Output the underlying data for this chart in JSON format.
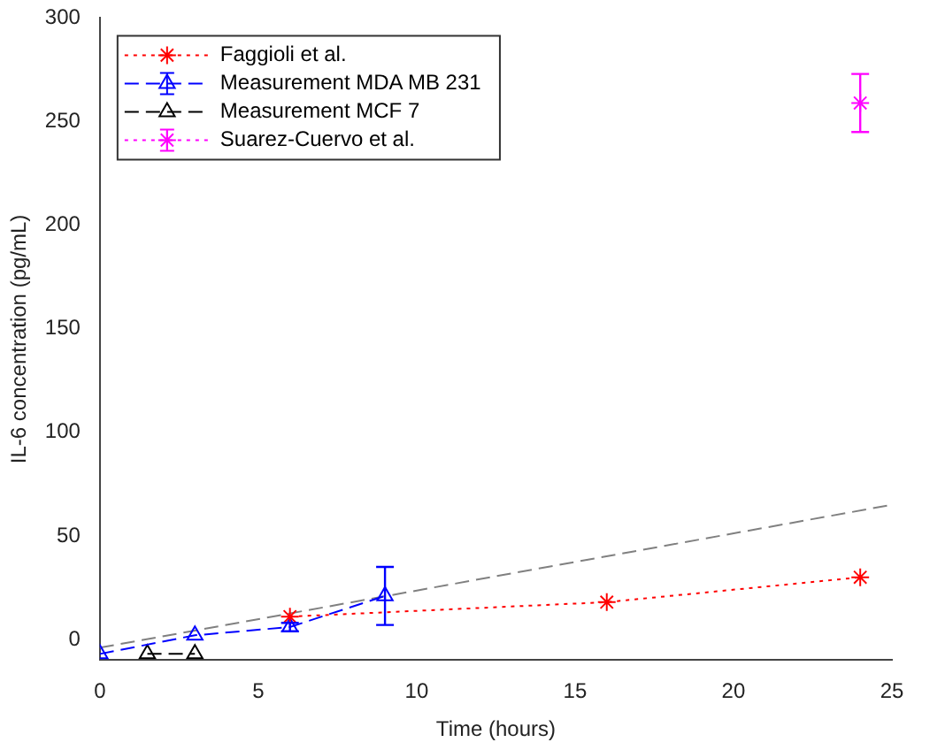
{
  "chart_data": {
    "type": "line",
    "xlabel": "Time (hours)",
    "ylabel": "IL-6 concentration (pg/mL)",
    "xlim": [
      0,
      25
    ],
    "xticks": [
      0,
      5,
      10,
      15,
      20,
      25
    ],
    "ylim": [
      -10,
      300
    ],
    "yticks": [
      0,
      50,
      100,
      150,
      200,
      250,
      300
    ],
    "grid": false,
    "legend": "top left",
    "series": [
      {
        "name": "Faggioli et al.",
        "color": "#ff0000",
        "x": [
          6,
          16,
          24
        ],
        "values": [
          11,
          18,
          30
        ],
        "marker": "cross",
        "line_style": "dotted"
      },
      {
        "name": "Measurement MDA MB 231",
        "color": "#0000ff",
        "x": [
          0,
          3,
          6,
          9
        ],
        "values": [
          -7,
          2,
          6,
          21
        ],
        "errors": [
          null,
          null,
          2,
          14
        ],
        "marker": "triangle",
        "line_style": "dashed"
      },
      {
        "name": "Measurement MCF 7",
        "color": "#000000",
        "x": [
          1.5,
          3
        ],
        "values": [
          -7,
          -7
        ],
        "marker": "triangle",
        "line_style": "dashed"
      },
      {
        "name": "Suarez-Cuervo et al.",
        "color": "#ff00ff",
        "x": [
          24
        ],
        "values": [
          259
        ],
        "errors": [
          14
        ],
        "marker": "cross",
        "line_style": "dotted"
      },
      {
        "color": "#808080",
        "x": [
          0,
          25
        ],
        "values": [
          -4,
          65
        ],
        "marker": "none",
        "line_style": "dashed"
      }
    ]
  }
}
